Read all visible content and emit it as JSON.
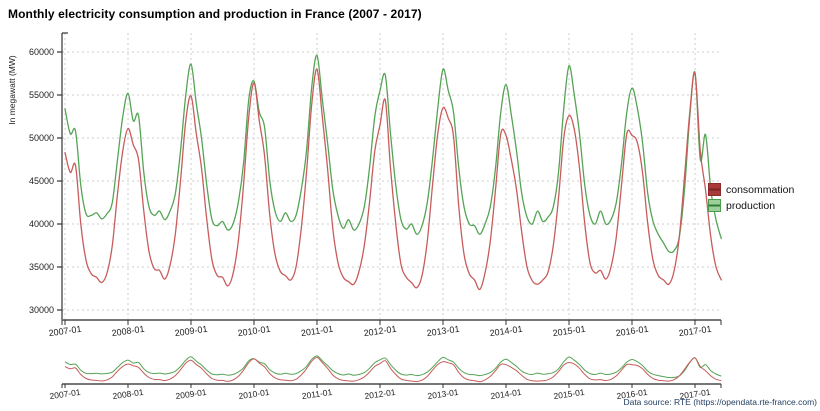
{
  "title": "Monthly electricity consumption and production in France (2007 - 2017)",
  "source_note": "Data source: RTE (https://opendata.rte-france.com)",
  "legend": {
    "position": "right",
    "items": [
      {
        "label": "consommation"
      },
      {
        "label": "production"
      }
    ]
  },
  "chart_data": {
    "type": "line",
    "title": "Monthly electricity consumption and production in France (2007 - 2017)",
    "ylabel": "In megawatt (MW)",
    "xlabel": "",
    "frequency": "monthly",
    "x_start": "2007-01",
    "x_end": "2017-06",
    "ylim": [
      28000,
      61000
    ],
    "grid": "dashed",
    "legend_position": "right",
    "has_range_navigator": true,
    "y_ticks": [
      30000,
      35000,
      40000,
      45000,
      50000,
      55000,
      60000
    ],
    "x_labels": [
      "2007-01",
      "2008-01",
      "2009-01",
      "2010-01",
      "2011-01",
      "2012-01",
      "2013-01",
      "2014-01",
      "2015-01",
      "2016-01",
      "2017-01"
    ],
    "style": {
      "grid_color": "#cccccc",
      "y_axis_color": "#333333",
      "x_axis_color": "#777777",
      "tick_label_color": "#222222",
      "source_text_color": "#1d3a5f"
    },
    "series": [
      {
        "name": "consommation",
        "color": "#c85c5c",
        "legend_fill": "#a83a3a",
        "legend_border": "#8c2b2b",
        "legend_line": "#7a2424",
        "values": [
          48300,
          46000,
          46800,
          40000,
          35800,
          34200,
          33800,
          33200,
          34300,
          37500,
          43500,
          48500,
          51100,
          49200,
          47500,
          41500,
          36800,
          34800,
          34600,
          33600,
          35200,
          38800,
          45000,
          52000,
          54900,
          50500,
          46500,
          40500,
          35800,
          34000,
          33800,
          32800,
          34200,
          38000,
          44500,
          52500,
          56400,
          52000,
          48000,
          41000,
          36500,
          34500,
          34000,
          33500,
          35000,
          39500,
          46000,
          54000,
          58000,
          52500,
          46500,
          39500,
          35500,
          33800,
          33300,
          33000,
          34500,
          37500,
          42500,
          48500,
          51500,
          54400,
          46500,
          40000,
          35300,
          33800,
          33200,
          32600,
          34000,
          38000,
          44500,
          50500,
          53500,
          52300,
          50200,
          42000,
          36500,
          34200,
          33500,
          32400,
          34300,
          38000,
          44000,
          50500,
          50300,
          47500,
          44000,
          39000,
          35000,
          33400,
          33000,
          33500,
          34400,
          37500,
          43000,
          50000,
          52600,
          51000,
          46500,
          40000,
          35500,
          34300,
          34600,
          33600,
          35000,
          38500,
          44500,
          50500,
          50300,
          49500,
          46000,
          40000,
          35800,
          34000,
          33500,
          33000,
          34500,
          38500,
          45500,
          53000,
          57500,
          48500,
          44000,
          38500,
          35000,
          33500
        ]
      },
      {
        "name": "production",
        "color": "#55a455",
        "legend_fill": "#9ccf9c",
        "legend_border": "#4c9a4c",
        "legend_line": "#2f7d32",
        "values": [
          53400,
          50500,
          50800,
          44500,
          41200,
          41000,
          41300,
          40600,
          41200,
          42500,
          47500,
          52500,
          55200,
          52000,
          52600,
          46000,
          42000,
          41000,
          41500,
          40500,
          41500,
          43500,
          48500,
          55000,
          58600,
          54000,
          50000,
          44500,
          40500,
          39800,
          40300,
          39300,
          40000,
          42500,
          47000,
          54500,
          56600,
          53000,
          51300,
          45000,
          41500,
          40300,
          41300,
          40300,
          41000,
          44000,
          48500,
          56000,
          59600,
          54500,
          49500,
          44000,
          41000,
          39500,
          40500,
          39300,
          40000,
          42000,
          46500,
          52500,
          55500,
          57300,
          50500,
          44500,
          40500,
          39400,
          40000,
          38800,
          39800,
          42500,
          47500,
          53500,
          58000,
          55500,
          53000,
          46500,
          42000,
          40000,
          39800,
          38800,
          40000,
          42000,
          46500,
          53000,
          56200,
          52700,
          48500,
          43500,
          40800,
          40000,
          41500,
          40300,
          40800,
          42000,
          46000,
          53500,
          58400,
          55000,
          50500,
          44500,
          41000,
          40000,
          41500,
          40000,
          40500,
          42500,
          47000,
          53000,
          55800,
          53500,
          49500,
          43500,
          40300,
          38800,
          37800,
          36800,
          36900,
          38500,
          44000,
          52500,
          57600,
          47500,
          50400,
          44000,
          40500,
          38300
        ]
      }
    ]
  }
}
